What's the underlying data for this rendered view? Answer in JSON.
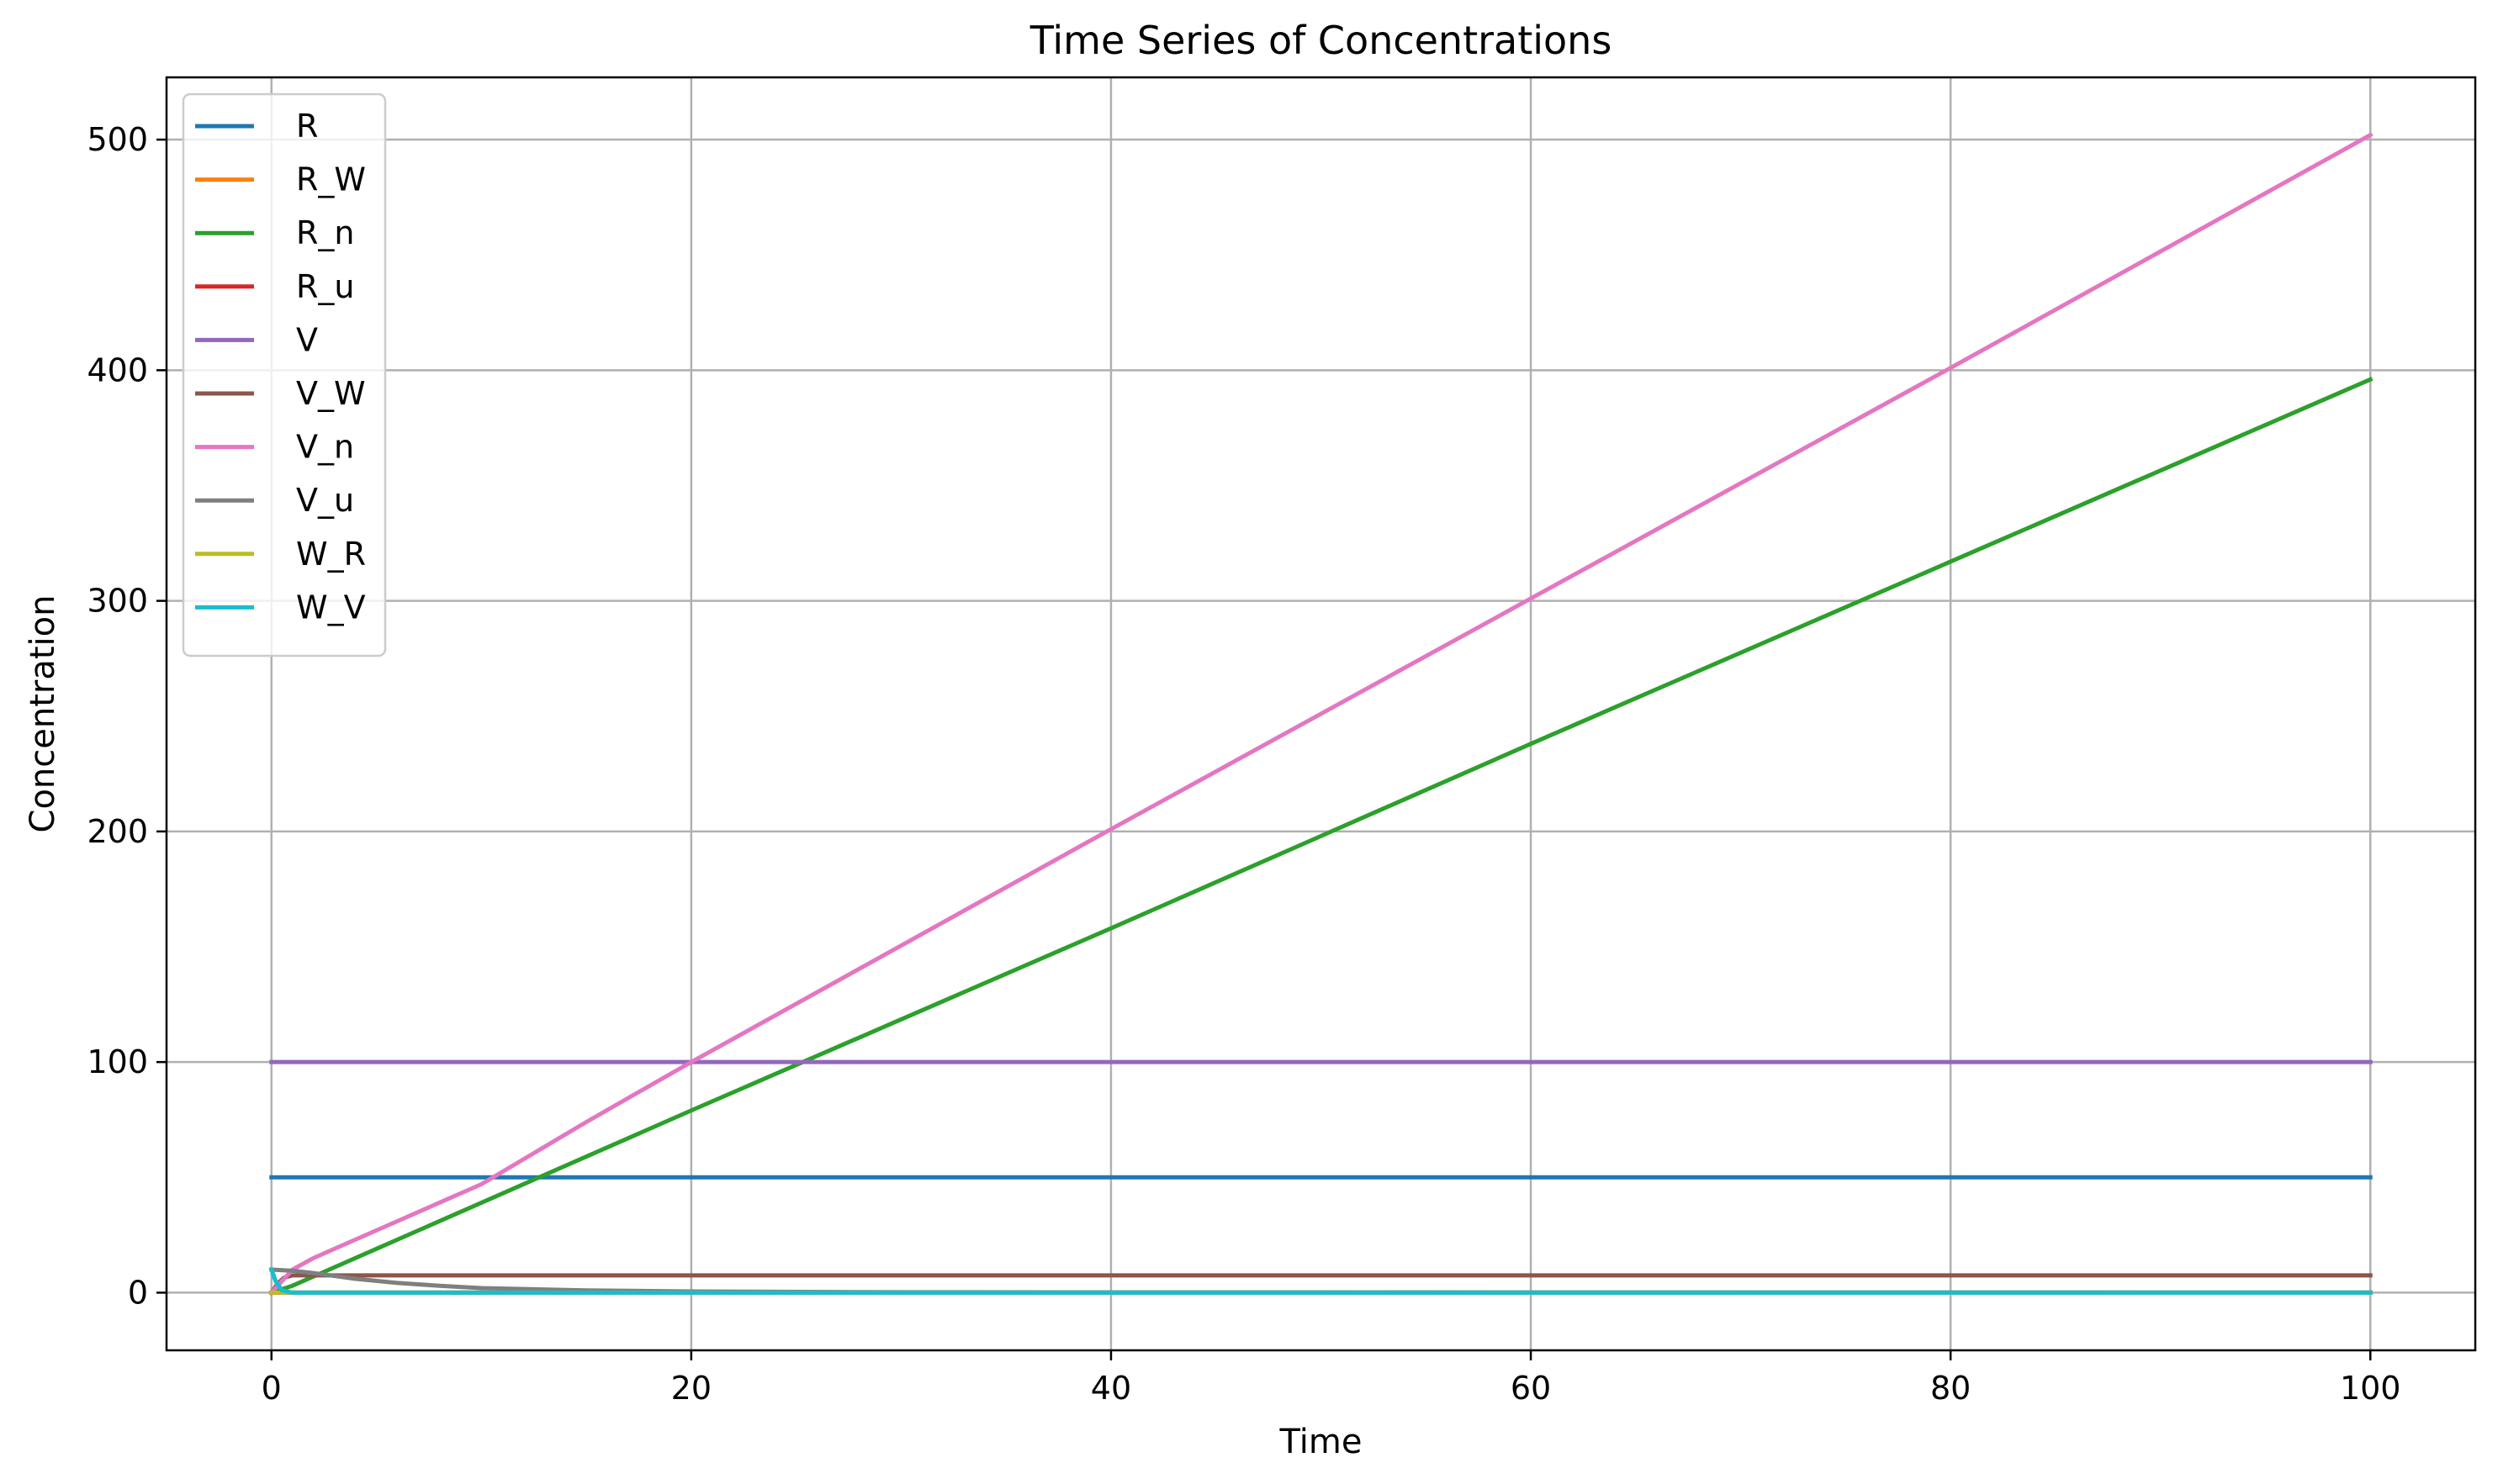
{
  "chart_data": {
    "type": "line",
    "title": "Time Series of Concentrations",
    "xlabel": "Time",
    "ylabel": "Concentration",
    "xlim": [
      -5,
      105
    ],
    "ylim": [
      -25,
      527
    ],
    "xticks": [
      0,
      20,
      40,
      60,
      80,
      100
    ],
    "yticks": [
      0,
      100,
      200,
      300,
      400,
      500
    ],
    "xtick_labels": [
      "0",
      "20",
      "40",
      "60",
      "80",
      "100"
    ],
    "ytick_labels": [
      "0",
      "100",
      "200",
      "300",
      "400",
      "500"
    ],
    "grid": true,
    "legend_position": "upper-left",
    "series": [
      {
        "name": "R",
        "color": "#1f77b4",
        "points": [
          [
            0,
            50
          ],
          [
            100,
            50
          ]
        ]
      },
      {
        "name": "R_W",
        "color": "#ff7f0e",
        "points": [
          [
            0,
            0
          ],
          [
            100,
            0
          ]
        ]
      },
      {
        "name": "R_n",
        "color": "#2ca02c",
        "points": [
          [
            0,
            0
          ],
          [
            1,
            3
          ],
          [
            5,
            19
          ],
          [
            20,
            79
          ],
          [
            40,
            158
          ],
          [
            60,
            238
          ],
          [
            80,
            317
          ],
          [
            100,
            396
          ]
        ]
      },
      {
        "name": "R_u",
        "color": "#d62728",
        "points": [
          [
            0,
            0
          ],
          [
            100,
            0
          ]
        ]
      },
      {
        "name": "V",
        "color": "#9467bd",
        "points": [
          [
            0,
            100
          ],
          [
            100,
            100
          ]
        ]
      },
      {
        "name": "V_W",
        "color": "#8c564b",
        "points": [
          [
            0,
            0
          ],
          [
            0.3,
            4
          ],
          [
            0.6,
            6.5
          ],
          [
            1,
            7.5
          ],
          [
            2,
            7.5
          ],
          [
            100,
            7.5
          ]
        ]
      },
      {
        "name": "V_n",
        "color": "#e377c2",
        "points": [
          [
            0,
            0
          ],
          [
            0.5,
            5
          ],
          [
            1,
            10
          ],
          [
            2,
            15
          ],
          [
            5,
            27
          ],
          [
            8,
            39
          ],
          [
            10,
            47
          ],
          [
            15,
            74
          ],
          [
            20,
            100
          ],
          [
            40,
            201
          ],
          [
            60,
            301
          ],
          [
            80,
            401
          ],
          [
            100,
            502
          ]
        ]
      },
      {
        "name": "V_u",
        "color": "#7f7f7f",
        "points": [
          [
            0,
            10
          ],
          [
            1,
            9.5
          ],
          [
            2,
            8.5
          ],
          [
            4,
            6
          ],
          [
            6,
            4.2
          ],
          [
            8,
            3
          ],
          [
            10,
            2
          ],
          [
            15,
            1
          ],
          [
            20,
            0.5
          ],
          [
            30,
            0.2
          ],
          [
            100,
            0
          ]
        ]
      },
      {
        "name": "W_R",
        "color": "#bcbd22",
        "points": [
          [
            0,
            0
          ],
          [
            100,
            0
          ]
        ]
      },
      {
        "name": "W_V",
        "color": "#17becf",
        "points": [
          [
            0,
            10
          ],
          [
            0.2,
            5
          ],
          [
            0.5,
            1
          ],
          [
            1,
            0
          ],
          [
            100,
            0
          ]
        ]
      }
    ]
  }
}
